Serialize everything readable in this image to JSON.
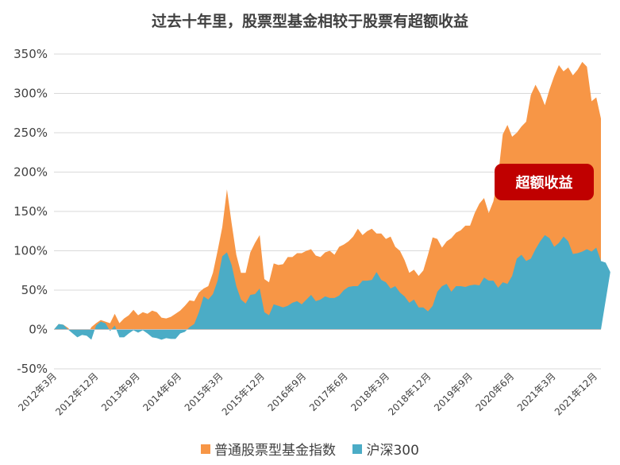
{
  "chart_data": {
    "type": "area",
    "title": "过去十年里，股票型基金相较于股票有超额收益",
    "ylim": [
      -50,
      350
    ],
    "ytick_values": [
      -50,
      0,
      50,
      100,
      150,
      200,
      250,
      300,
      350
    ],
    "ytick_labels": [
      "-50%",
      "0%",
      "50%",
      "100%",
      "150%",
      "200%",
      "250%",
      "300%",
      "350%"
    ],
    "xtick_labels": [
      "2012年3月",
      "2012年12月",
      "2013年9月",
      "2014年6月",
      "2015年3月",
      "2015年12月",
      "2016年9月",
      "2017年6月",
      "2018年3月",
      "2018年12月",
      "2019年9月",
      "2020年6月",
      "2021年3月",
      "2021年12月"
    ],
    "grid": "horizontal",
    "legend_position": "bottom",
    "x_start": "2012年3月",
    "x_end": "2022年4月",
    "series": [
      {
        "name": "普通股票型基金指数",
        "color": "#f79646",
        "values": [
          0,
          7,
          6,
          2,
          -4,
          -6,
          -3,
          -8,
          3,
          8,
          12,
          10,
          8,
          20,
          8,
          14,
          18,
          25,
          18,
          22,
          20,
          24,
          22,
          15,
          14,
          16,
          20,
          24,
          30,
          37,
          36,
          47,
          52,
          55,
          72,
          100,
          130,
          178,
          135,
          95,
          72,
          72,
          98,
          110,
          120,
          64,
          60,
          84,
          82,
          83,
          92,
          92,
          97,
          97,
          100,
          102,
          94,
          92,
          98,
          100,
          95,
          105,
          108,
          112,
          118,
          128,
          120,
          125,
          128,
          122,
          122,
          115,
          118,
          105,
          100,
          88,
          72,
          76,
          68,
          75,
          95,
          117,
          115,
          104,
          112,
          116,
          123,
          126,
          132,
          132,
          148,
          160,
          167,
          148,
          163,
          195,
          248,
          260,
          245,
          250,
          258,
          264,
          298,
          311,
          300,
          285,
          305,
          322,
          336,
          328,
          333,
          323,
          330,
          340,
          334,
          290,
          295,
          268
        ]
      },
      {
        "name": "沪深300",
        "color": "#4bacc6",
        "values": [
          0,
          7,
          6,
          0,
          -5,
          -10,
          -7,
          -8,
          -13,
          5,
          10,
          8,
          -2,
          5,
          -10,
          -10,
          -5,
          -1,
          -4,
          -1,
          -5,
          -10,
          -11,
          -13,
          -11,
          -12,
          -12,
          -5,
          -3,
          3,
          7,
          22,
          42,
          38,
          45,
          62,
          93,
          98,
          82,
          55,
          38,
          33,
          44,
          45,
          52,
          22,
          18,
          32,
          30,
          28,
          30,
          34,
          36,
          32,
          38,
          44,
          36,
          38,
          42,
          40,
          40,
          43,
          50,
          54,
          55,
          55,
          62,
          62,
          63,
          73,
          63,
          60,
          52,
          55,
          47,
          42,
          34,
          38,
          28,
          28,
          23,
          30,
          48,
          55,
          58,
          48,
          55,
          55,
          54,
          56,
          57,
          56,
          66,
          62,
          62,
          53,
          60,
          58,
          68,
          90,
          95,
          87,
          90,
          102,
          112,
          120,
          116,
          105,
          110,
          118,
          112,
          96,
          97,
          99,
          102,
          99,
          104,
          87,
          85,
          73
        ]
      }
    ],
    "annotation": "超额收益"
  }
}
